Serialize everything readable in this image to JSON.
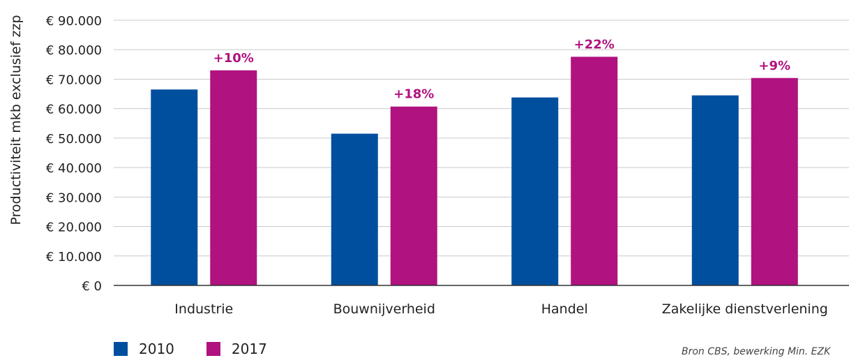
{
  "colors": {
    "2010": "#004f9f",
    "2017": "#b0127f",
    "grid": "#c9c9c9",
    "axis": "#333333"
  },
  "chart_data": {
    "type": "bar",
    "categories": [
      "Industrie",
      "Bouwnijverheid",
      "Handel",
      "Zakelijke dienstverlening"
    ],
    "series": [
      {
        "name": "2010",
        "values": [
          66500,
          51500,
          63800,
          64500
        ]
      },
      {
        "name": "2017",
        "values": [
          73000,
          60700,
          77600,
          70400
        ]
      }
    ],
    "data_labels": [
      "+10%",
      "+18%",
      "+22%",
      "+9%"
    ],
    "ylim": [
      0,
      90000
    ],
    "yticks": [
      0,
      10000,
      20000,
      30000,
      40000,
      50000,
      60000,
      70000,
      80000,
      90000
    ],
    "ytick_labels": [
      "€ 0",
      "€ 10.000",
      "€ 20.000",
      "€ 30.000",
      "€ 40.000",
      "€ 50.000",
      "€ 60.000",
      "€ 70.000",
      "€ 80.000",
      "€ 90.000"
    ],
    "ylabel": "Productiviteit mkb exclusief zzp",
    "xlabel": "",
    "title": "",
    "grid": true,
    "legend_position": "bottom-left"
  },
  "source": "Bron CBS, bewerking Min. EZK"
}
